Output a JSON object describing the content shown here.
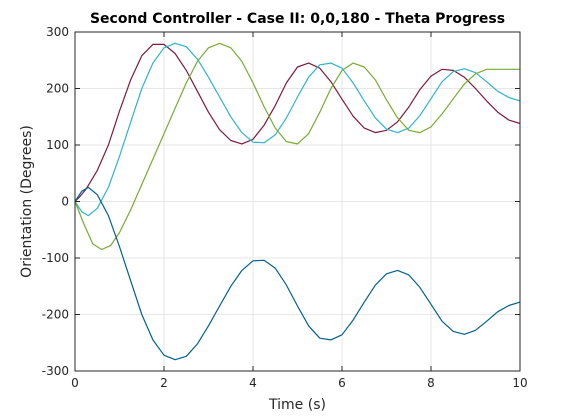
{
  "chart_data": {
    "type": "line",
    "title": "Second Controller - Case II: 0,0,180 - Theta Progress",
    "xlabel": "Time (s)",
    "ylabel": "Orientation (Degrees)",
    "xlim": [
      0,
      10
    ],
    "ylim": [
      -300,
      300
    ],
    "xticks": [
      0,
      2,
      4,
      6,
      8,
      10
    ],
    "yticks": [
      300,
      200,
      100,
      0,
      -100,
      -200,
      -300
    ],
    "xtick_labels": [
      "0",
      "2",
      "4",
      "6",
      "8",
      "10"
    ],
    "ytick_labels": [
      "300",
      "200",
      "100",
      "0",
      "-100",
      "-200",
      "-300"
    ],
    "grid": true,
    "legend": "none",
    "series": [
      {
        "color": "#7e1a3c",
        "x": [
          0,
          0.1,
          0.25,
          0.5,
          0.75,
          1.0,
          1.25,
          1.5,
          1.75,
          2.0,
          2.25,
          2.5,
          2.75,
          3.0,
          3.25,
          3.5,
          3.75,
          4.0,
          4.25,
          4.5,
          4.75,
          5.0,
          5.25,
          5.5,
          5.75,
          6.0,
          6.25,
          6.5,
          6.75,
          7.0,
          7.25,
          7.5,
          7.75,
          8.0,
          8.25,
          8.5,
          8.75,
          9.0,
          9.25,
          9.5,
          9.75,
          10.0
        ],
        "y": [
          0,
          8,
          22,
          55,
          100,
          160,
          215,
          258,
          278,
          278,
          262,
          232,
          195,
          158,
          127,
          108,
          102,
          110,
          135,
          170,
          210,
          238,
          245,
          236,
          212,
          181,
          151,
          130,
          122,
          126,
          141,
          167,
          198,
          222,
          234,
          232,
          220,
          200,
          178,
          158,
          144,
          138
        ]
      },
      {
        "color": "#2db4cc",
        "x": [
          0,
          0.15,
          0.3,
          0.5,
          0.75,
          1.0,
          1.25,
          1.5,
          1.75,
          2.0,
          2.25,
          2.5,
          2.75,
          3.0,
          3.25,
          3.5,
          3.75,
          4.0,
          4.25,
          4.5,
          4.75,
          5.0,
          5.25,
          5.5,
          5.75,
          6.0,
          6.25,
          6.5,
          6.75,
          7.0,
          7.25,
          7.5,
          7.75,
          8.0,
          8.25,
          8.5,
          8.75,
          9.0,
          9.25,
          9.5,
          9.75,
          10.0
        ],
        "y": [
          0,
          -18,
          -25,
          -12,
          25,
          80,
          140,
          200,
          245,
          272,
          280,
          274,
          252,
          220,
          185,
          150,
          122,
          105,
          104,
          118,
          148,
          185,
          220,
          242,
          245,
          236,
          210,
          178,
          148,
          128,
          122,
          130,
          152,
          182,
          212,
          230,
          235,
          228,
          212,
          195,
          184,
          178
        ]
      },
      {
        "color": "#77ac30",
        "x": [
          0,
          0.2,
          0.4,
          0.6,
          0.8,
          1.0,
          1.25,
          1.5,
          1.75,
          2.0,
          2.25,
          2.5,
          2.75,
          3.0,
          3.25,
          3.5,
          3.75,
          4.0,
          4.25,
          4.5,
          4.75,
          5.0,
          5.25,
          5.5,
          5.75,
          6.0,
          6.25,
          6.5,
          6.75,
          7.0,
          7.25,
          7.5,
          7.75,
          8.0,
          8.25,
          8.5,
          8.75,
          9.0,
          9.25,
          9.5,
          9.75,
          10.0
        ],
        "y": [
          0,
          -40,
          -75,
          -85,
          -78,
          -55,
          -15,
          30,
          75,
          120,
          165,
          210,
          248,
          272,
          280,
          272,
          248,
          210,
          168,
          130,
          106,
          102,
          120,
          158,
          200,
          232,
          245,
          238,
          215,
          180,
          148,
          126,
          122,
          132,
          155,
          182,
          208,
          226,
          234,
          234,
          234,
          234
        ]
      },
      {
        "color": "#00618f",
        "x": [
          0,
          0.15,
          0.3,
          0.5,
          0.75,
          1.0,
          1.25,
          1.5,
          1.75,
          2.0,
          2.25,
          2.5,
          2.75,
          3.0,
          3.25,
          3.5,
          3.75,
          4.0,
          4.25,
          4.5,
          4.75,
          5.0,
          5.25,
          5.5,
          5.75,
          6.0,
          6.25,
          6.5,
          6.75,
          7.0,
          7.25,
          7.5,
          7.75,
          8.0,
          8.25,
          8.5,
          8.75,
          9.0,
          9.25,
          9.5,
          9.75,
          10.0
        ],
        "y": [
          0,
          18,
          25,
          12,
          -25,
          -80,
          -140,
          -200,
          -245,
          -272,
          -280,
          -274,
          -252,
          -220,
          -185,
          -150,
          -122,
          -105,
          -104,
          -118,
          -148,
          -185,
          -220,
          -242,
          -245,
          -236,
          -210,
          -178,
          -148,
          -128,
          -122,
          -130,
          -152,
          -182,
          -212,
          -230,
          -235,
          -228,
          -212,
          -195,
          -184,
          -178
        ]
      }
    ]
  }
}
